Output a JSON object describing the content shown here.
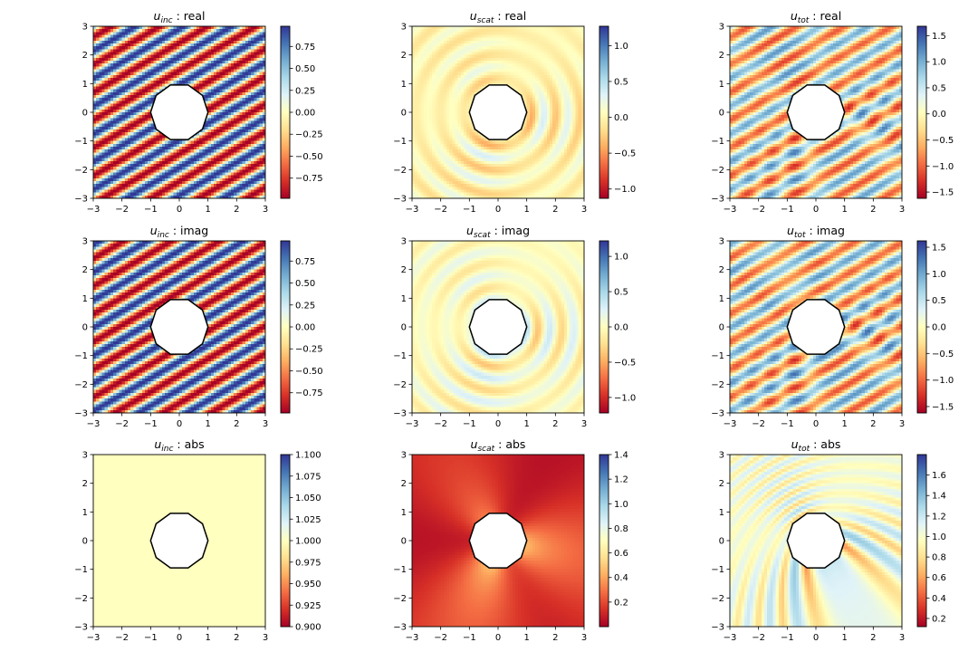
{
  "chart_data": [
    {
      "type": "heatmap",
      "title_sym": "u",
      "title_sub": "inc",
      "title_sep": " : ",
      "title_part": "real",
      "field": "inc",
      "component": "real",
      "xlim": [
        -3,
        3
      ],
      "ylim": [
        -3,
        3
      ],
      "xticks": [
        -3,
        -2,
        -1,
        0,
        1,
        2,
        3
      ],
      "yticks": [
        -3,
        -2,
        -1,
        0,
        1,
        2,
        3
      ],
      "colorbar": {
        "min": -0.98,
        "max": 0.98,
        "ticks": [
          0.75,
          0.5,
          0.25,
          0.0,
          -0.25,
          -0.5,
          -0.75
        ],
        "tick_labels": [
          "0.75",
          "0.50",
          "0.25",
          "0.00",
          "−0.25",
          "−0.50",
          "−0.75"
        ]
      }
    },
    {
      "type": "heatmap",
      "title_sym": "u",
      "title_sub": "scat",
      "title_sep": " : ",
      "title_part": "real",
      "field": "scat",
      "component": "real",
      "xlim": [
        -3,
        3
      ],
      "ylim": [
        -3,
        3
      ],
      "xticks": [
        -3,
        -2,
        -1,
        0,
        1,
        2,
        3
      ],
      "yticks": [
        -3,
        -2,
        -1,
        0,
        1,
        2,
        3
      ],
      "colorbar": {
        "min": -1.13,
        "max": 1.27,
        "ticks": [
          1.0,
          0.5,
          0.0,
          -0.5,
          -1.0
        ],
        "tick_labels": [
          "1.0",
          "0.5",
          "0.0",
          "−0.5",
          "−1.0"
        ]
      }
    },
    {
      "type": "heatmap",
      "title_sym": "u",
      "title_sub": "tot",
      "title_sep": " : ",
      "title_part": "real",
      "field": "tot",
      "component": "real",
      "xlim": [
        -3,
        3
      ],
      "ylim": [
        -3,
        3
      ],
      "xticks": [
        -3,
        -2,
        -1,
        0,
        1,
        2,
        3
      ],
      "yticks": [
        -3,
        -2,
        -1,
        0,
        1,
        2,
        3
      ],
      "colorbar": {
        "min": -1.62,
        "max": 1.68,
        "ticks": [
          1.5,
          1.0,
          0.5,
          0.0,
          -0.5,
          -1.0,
          -1.5
        ],
        "tick_labels": [
          "1.5",
          "1.0",
          "0.5",
          "0.0",
          "−0.5",
          "−1.0",
          "−1.5"
        ]
      }
    },
    {
      "type": "heatmap",
      "title_sym": "u",
      "title_sub": "inc",
      "title_sep": " : ",
      "title_part": "imag",
      "field": "inc",
      "component": "imag",
      "xlim": [
        -3,
        3
      ],
      "ylim": [
        -3,
        3
      ],
      "xticks": [
        -3,
        -2,
        -1,
        0,
        1,
        2,
        3
      ],
      "yticks": [
        -3,
        -2,
        -1,
        0,
        1,
        2,
        3
      ],
      "colorbar": {
        "min": -0.98,
        "max": 0.98,
        "ticks": [
          0.75,
          0.5,
          0.25,
          0.0,
          -0.25,
          -0.5,
          -0.75
        ],
        "tick_labels": [
          "0.75",
          "0.50",
          "0.25",
          "0.00",
          "−0.25",
          "−0.50",
          "−0.75"
        ]
      }
    },
    {
      "type": "heatmap",
      "title_sym": "u",
      "title_sub": "scat",
      "title_sep": " : ",
      "title_part": "imag",
      "field": "scat",
      "component": "imag",
      "xlim": [
        -3,
        3
      ],
      "ylim": [
        -3,
        3
      ],
      "xticks": [
        -3,
        -2,
        -1,
        0,
        1,
        2,
        3
      ],
      "yticks": [
        -3,
        -2,
        -1,
        0,
        1,
        2,
        3
      ],
      "colorbar": {
        "min": -1.22,
        "max": 1.22,
        "ticks": [
          1.0,
          0.5,
          0.0,
          -0.5,
          -1.0
        ],
        "tick_labels": [
          "1.0",
          "0.5",
          "0.0",
          "−0.5",
          "−1.0"
        ]
      }
    },
    {
      "type": "heatmap",
      "title_sym": "u",
      "title_sub": "tot",
      "title_sep": " : ",
      "title_part": "imag",
      "field": "tot",
      "component": "imag",
      "xlim": [
        -3,
        3
      ],
      "ylim": [
        -3,
        3
      ],
      "xticks": [
        -3,
        -2,
        -1,
        0,
        1,
        2,
        3
      ],
      "yticks": [
        -3,
        -2,
        -1,
        0,
        1,
        2,
        3
      ],
      "colorbar": {
        "min": -1.62,
        "max": 1.62,
        "ticks": [
          1.5,
          1.0,
          0.5,
          0.0,
          -0.5,
          -1.0,
          -1.5
        ],
        "tick_labels": [
          "1.5",
          "1.0",
          "0.5",
          "0.0",
          "−0.5",
          "−1.0",
          "−1.5"
        ]
      }
    },
    {
      "type": "heatmap",
      "title_sym": "u",
      "title_sub": "inc",
      "title_sep": " : ",
      "title_part": "abs",
      "field": "inc",
      "component": "abs",
      "xlim": [
        -3,
        3
      ],
      "ylim": [
        -3,
        3
      ],
      "xticks": [
        -3,
        -2,
        -1,
        0,
        1,
        2,
        3
      ],
      "yticks": [
        -3,
        -2,
        -1,
        0,
        1,
        2,
        3
      ],
      "colorbar": {
        "min": 0.9,
        "max": 1.1,
        "ticks": [
          1.1,
          1.075,
          1.05,
          1.025,
          1.0,
          0.975,
          0.95,
          0.925,
          0.9
        ],
        "tick_labels": [
          "1.100",
          "1.075",
          "1.050",
          "1.025",
          "1.000",
          "0.975",
          "0.950",
          "0.925",
          "0.900"
        ]
      }
    },
    {
      "type": "heatmap",
      "title_sym": "u",
      "title_sub": "scat",
      "title_sep": " : ",
      "title_part": "abs",
      "field": "scat",
      "component": "abs",
      "xlim": [
        -3,
        3
      ],
      "ylim": [
        -3,
        3
      ],
      "xticks": [
        -3,
        -2,
        -1,
        0,
        1,
        2,
        3
      ],
      "yticks": [
        -3,
        -2,
        -1,
        0,
        1,
        2,
        3
      ],
      "colorbar": {
        "min": 0.0,
        "max": 1.4,
        "ticks": [
          1.4,
          1.2,
          1.0,
          0.8,
          0.6,
          0.4,
          0.2
        ],
        "tick_labels": [
          "1.4",
          "1.2",
          "1.0",
          "0.8",
          "0.6",
          "0.4",
          "0.2"
        ]
      }
    },
    {
      "type": "heatmap",
      "title_sym": "u",
      "title_sub": "tot",
      "title_sep": " : ",
      "title_part": "abs",
      "field": "tot",
      "component": "abs",
      "xlim": [
        -3,
        3
      ],
      "ylim": [
        -3,
        3
      ],
      "xticks": [
        -3,
        -2,
        -1,
        0,
        1,
        2,
        3
      ],
      "yticks": [
        -3,
        -2,
        -1,
        0,
        1,
        2,
        3
      ],
      "colorbar": {
        "min": 0.12,
        "max": 1.8,
        "ticks": [
          1.6,
          1.4,
          1.2,
          1.0,
          0.8,
          0.6,
          0.4,
          0.2
        ],
        "tick_labels": [
          "1.6",
          "1.4",
          "1.2",
          "1.0",
          "0.8",
          "0.6",
          "0.4",
          "0.2"
        ]
      }
    }
  ],
  "obstacle": {
    "shape": "decagon",
    "radius": 1.0
  },
  "colormap": {
    "name": "RdYlBu",
    "stops": [
      "#a50026",
      "#d73027",
      "#f46d43",
      "#fdae61",
      "#fee090",
      "#ffffbf",
      "#e0f3f8",
      "#abd9e9",
      "#74add1",
      "#4575b4",
      "#313695"
    ]
  }
}
